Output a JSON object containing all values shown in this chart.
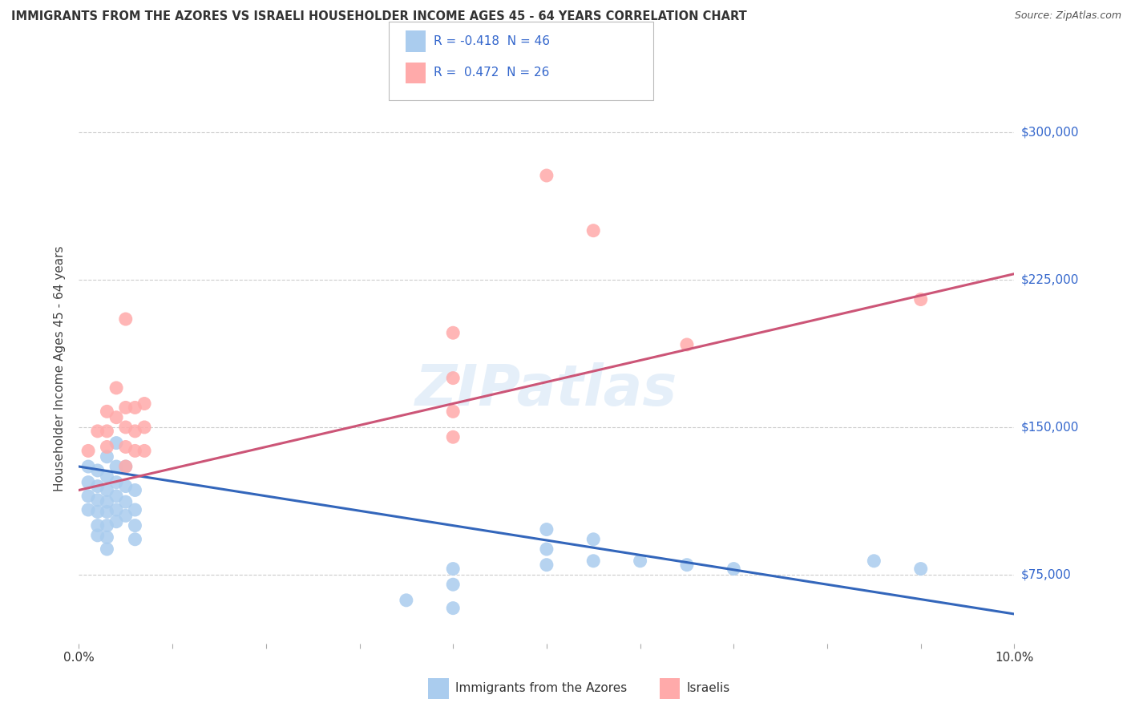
{
  "title": "IMMIGRANTS FROM THE AZORES VS ISRAELI HOUSEHOLDER INCOME AGES 45 - 64 YEARS CORRELATION CHART",
  "source": "Source: ZipAtlas.com",
  "ylabel": "Householder Income Ages 45 - 64 years",
  "xlim": [
    0.0,
    0.1
  ],
  "ylim": [
    40000,
    320000
  ],
  "yticks": [
    75000,
    150000,
    225000,
    300000
  ],
  "ytick_labels": [
    "$75,000",
    "$150,000",
    "$225,000",
    "$300,000"
  ],
  "xticks": [
    0.0,
    0.01,
    0.02,
    0.03,
    0.04,
    0.05,
    0.06,
    0.07,
    0.08,
    0.09,
    0.1
  ],
  "xtick_labels_show": {
    "0.0": "0.0%",
    "0.1": "10.0%"
  },
  "background_color": "#ffffff",
  "grid_color": "#cccccc",
  "watermark": "ZIPatlas",
  "legend_r1": "R = -0.418  N = 46",
  "legend_r2": "R =  0.472  N = 26",
  "blue_color": "#aaccee",
  "pink_color": "#ffaaaa",
  "blue_line_color": "#3366bb",
  "pink_line_color": "#cc5577",
  "blue_scatter": [
    [
      0.001,
      130000
    ],
    [
      0.001,
      122000
    ],
    [
      0.001,
      115000
    ],
    [
      0.001,
      108000
    ],
    [
      0.002,
      128000
    ],
    [
      0.002,
      120000
    ],
    [
      0.002,
      113000
    ],
    [
      0.002,
      107000
    ],
    [
      0.002,
      100000
    ],
    [
      0.002,
      95000
    ],
    [
      0.003,
      135000
    ],
    [
      0.003,
      125000
    ],
    [
      0.003,
      118000
    ],
    [
      0.003,
      112000
    ],
    [
      0.003,
      107000
    ],
    [
      0.003,
      100000
    ],
    [
      0.003,
      94000
    ],
    [
      0.003,
      88000
    ],
    [
      0.004,
      142000
    ],
    [
      0.004,
      130000
    ],
    [
      0.004,
      122000
    ],
    [
      0.004,
      115000
    ],
    [
      0.004,
      108000
    ],
    [
      0.004,
      102000
    ],
    [
      0.005,
      130000
    ],
    [
      0.005,
      120000
    ],
    [
      0.005,
      112000
    ],
    [
      0.005,
      105000
    ],
    [
      0.006,
      118000
    ],
    [
      0.006,
      108000
    ],
    [
      0.006,
      100000
    ],
    [
      0.006,
      93000
    ],
    [
      0.035,
      62000
    ],
    [
      0.04,
      78000
    ],
    [
      0.04,
      70000
    ],
    [
      0.04,
      58000
    ],
    [
      0.05,
      98000
    ],
    [
      0.05,
      88000
    ],
    [
      0.05,
      80000
    ],
    [
      0.055,
      93000
    ],
    [
      0.055,
      82000
    ],
    [
      0.06,
      82000
    ],
    [
      0.065,
      80000
    ],
    [
      0.07,
      78000
    ],
    [
      0.085,
      82000
    ],
    [
      0.09,
      78000
    ]
  ],
  "pink_scatter": [
    [
      0.001,
      138000
    ],
    [
      0.002,
      148000
    ],
    [
      0.003,
      158000
    ],
    [
      0.003,
      148000
    ],
    [
      0.003,
      140000
    ],
    [
      0.004,
      170000
    ],
    [
      0.004,
      155000
    ],
    [
      0.005,
      205000
    ],
    [
      0.005,
      160000
    ],
    [
      0.005,
      150000
    ],
    [
      0.005,
      140000
    ],
    [
      0.005,
      130000
    ],
    [
      0.006,
      160000
    ],
    [
      0.006,
      148000
    ],
    [
      0.006,
      138000
    ],
    [
      0.007,
      162000
    ],
    [
      0.007,
      150000
    ],
    [
      0.007,
      138000
    ],
    [
      0.04,
      198000
    ],
    [
      0.04,
      175000
    ],
    [
      0.04,
      158000
    ],
    [
      0.04,
      145000
    ],
    [
      0.05,
      278000
    ],
    [
      0.055,
      250000
    ],
    [
      0.065,
      192000
    ],
    [
      0.09,
      215000
    ]
  ]
}
